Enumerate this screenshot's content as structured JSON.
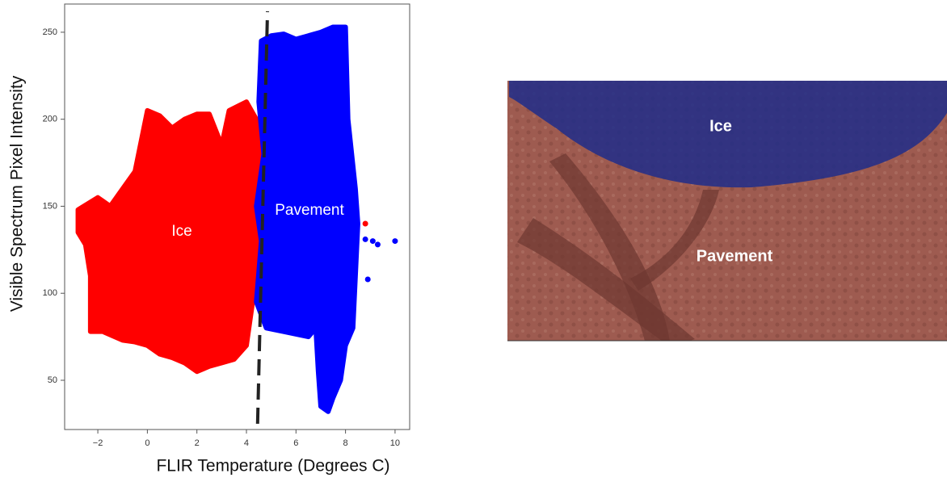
{
  "chart_data": {
    "type": "scatter",
    "xlabel": "FLIR Temperature (Degrees C)",
    "ylabel": "Visible Spectrum Pixel Intensity",
    "xlim": [
      -3.34,
      10.59
    ],
    "ylim": [
      21.7,
      266.2
    ],
    "xticks": [
      {
        "value": -2,
        "label": "−2"
      },
      0,
      2,
      4,
      6,
      8,
      10
    ],
    "yticks": [
      50,
      100,
      150,
      200,
      250
    ],
    "annotations": [
      "Ice",
      "Pavement"
    ],
    "series": [
      {
        "kind": "region",
        "color": "#ff0000",
        "x": [
          -2.8,
          -2.0,
          -1.5,
          -1.0,
          -0.5,
          0.0,
          0.5,
          1.0,
          1.5,
          2.0,
          2.5,
          3.0,
          3.3,
          4.0,
          4.4,
          4.6,
          4.5,
          4.3,
          4.0,
          3.5,
          3.0,
          2.5,
          2.0,
          1.5,
          1.0,
          0.5,
          0.0,
          -0.5,
          -1.0,
          -1.8,
          -2.3,
          -2.3,
          -2.5,
          -2.8
        ],
        "values": [
          148,
          155,
          150,
          160,
          170,
          205,
          202,
          195,
          200,
          203,
          203,
          185,
          205,
          210,
          200,
          180,
          150,
          100,
          70,
          62,
          60,
          58,
          55,
          60,
          63,
          65,
          70,
          72,
          73,
          78,
          78,
          110,
          128,
          135
        ]
      },
      {
        "kind": "region",
        "color": "#0000ff",
        "x": [
          4.6,
          5.0,
          5.5,
          6.0,
          6.5,
          7.0,
          7.5,
          8.0,
          8.1,
          8.4,
          8.5,
          8.3,
          8.0,
          7.8,
          7.5,
          7.3,
          7.0,
          6.9,
          6.8,
          6.5,
          5.5,
          4.8,
          4.4,
          4.6,
          4.4,
          4.7,
          4.5
        ],
        "values": [
          245,
          248,
          249,
          246,
          248,
          250,
          253,
          253,
          200,
          160,
          140,
          80,
          70,
          50,
          40,
          32,
          35,
          55,
          80,
          75,
          78,
          80,
          95,
          130,
          150,
          180,
          210
        ]
      },
      {
        "kind": "points",
        "color": "#0000ff",
        "x": [
          8.8,
          9.1,
          9.3,
          10.0,
          8.9
        ],
        "values": [
          131,
          130,
          128,
          130,
          108
        ]
      },
      {
        "kind": "points",
        "color": "#ff0000",
        "x": [
          8.8
        ],
        "values": [
          140
        ]
      },
      {
        "kind": "line",
        "color": "#222222",
        "x": [
          4.45,
          4.85
        ],
        "values": [
          25,
          262
        ]
      }
    ]
  },
  "image": {
    "labels": [
      "Ice",
      "Pavement"
    ]
  }
}
